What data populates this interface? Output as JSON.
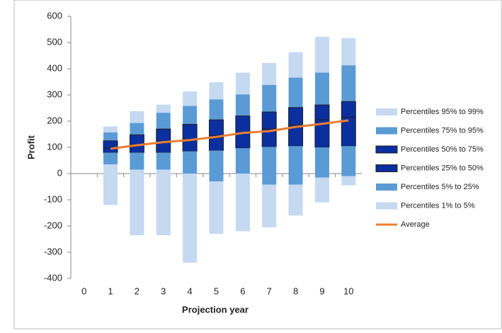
{
  "chart_data": {
    "type": "range-bar",
    "y_label": "Profit",
    "x_label": "Projection year",
    "categories": [
      "0",
      "1",
      "2",
      "3",
      "4",
      "5",
      "6",
      "7",
      "8",
      "9",
      "10"
    ],
    "ylim": [
      -400,
      600
    ],
    "yticks": [
      -400,
      -300,
      -200,
      -100,
      0,
      100,
      200,
      300,
      400,
      500,
      600
    ],
    "series": [
      {
        "name": "Percentiles 95% to 99%",
        "color": "#c5d9f1",
        "values": [
          null,
          [
            157,
            180
          ],
          [
            193,
            238
          ],
          [
            232,
            263
          ],
          [
            258,
            313
          ],
          [
            283,
            348
          ],
          [
            302,
            385
          ],
          [
            338,
            422
          ],
          [
            366,
            463
          ],
          [
            385,
            522
          ],
          [
            413,
            517
          ]
        ]
      },
      {
        "name": "Percentiles 75% to 95%",
        "color": "#5b9bd5",
        "values": [
          null,
          [
            125,
            157
          ],
          [
            148,
            193
          ],
          [
            170,
            232
          ],
          [
            188,
            258
          ],
          [
            205,
            283
          ],
          [
            220,
            302
          ],
          [
            235,
            338
          ],
          [
            252,
            366
          ],
          [
            262,
            385
          ],
          [
            275,
            413
          ]
        ]
      },
      {
        "name": "Percentiles 50% to 75%",
        "color": "#0b2f9f",
        "values": [
          null,
          [
            100,
            125
          ],
          [
            110,
            148
          ],
          [
            120,
            170
          ],
          [
            130,
            188
          ],
          [
            145,
            205
          ],
          [
            155,
            220
          ],
          [
            170,
            235
          ],
          [
            185,
            252
          ],
          [
            205,
            262
          ],
          [
            215,
            275
          ]
        ]
      },
      {
        "name": "Percentiles 25% to 50%",
        "color": "#0b2f9f",
        "values": [
          null,
          [
            80,
            100
          ],
          [
            80,
            110
          ],
          [
            80,
            120
          ],
          [
            85,
            130
          ],
          [
            88,
            145
          ],
          [
            97,
            155
          ],
          [
            102,
            170
          ],
          [
            105,
            185
          ],
          [
            100,
            205
          ],
          [
            105,
            215
          ]
        ]
      },
      {
        "name": "Percentiles 5% to 25%",
        "color": "#5b9bd5",
        "values": [
          null,
          [
            35,
            80
          ],
          [
            15,
            80
          ],
          [
            15,
            80
          ],
          [
            0,
            85
          ],
          [
            -30,
            88
          ],
          [
            0,
            97
          ],
          [
            -42,
            102
          ],
          [
            -42,
            105
          ],
          [
            -15,
            100
          ],
          [
            -10,
            105
          ]
        ]
      },
      {
        "name": "Percentiles 1% to 5%",
        "color": "#c5d9f1",
        "values": [
          null,
          [
            -120,
            35
          ],
          [
            -235,
            15
          ],
          [
            -235,
            15
          ],
          [
            -340,
            0
          ],
          [
            -230,
            -30
          ],
          [
            -220,
            0
          ],
          [
            -205,
            -42
          ],
          [
            -160,
            -42
          ],
          [
            -110,
            -15
          ],
          [
            -45,
            -10
          ]
        ]
      },
      {
        "name": "Average",
        "type": "line",
        "color": "#ed7d31",
        "values": [
          null,
          95,
          108,
          120,
          128,
          140,
          155,
          162,
          178,
          190,
          203
        ]
      }
    ]
  }
}
